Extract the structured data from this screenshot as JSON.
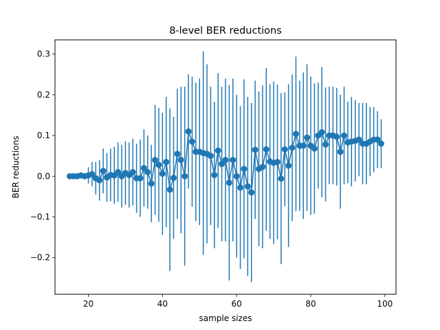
{
  "chart_data": {
    "type": "errorbar-line",
    "title": "8-level BER reductions",
    "xlabel": "sample sizes",
    "ylabel": "BER reductions",
    "xlim": [
      11,
      103
    ],
    "ylim": [
      -0.29,
      0.335
    ],
    "x_ticks": [
      20,
      40,
      60,
      80,
      100
    ],
    "y_ticks": [
      -0.2,
      -0.1,
      0.0,
      0.1,
      0.2,
      0.3
    ],
    "y_tick_labels": [
      "−0.2",
      "−0.1",
      "0.0",
      "0.1",
      "0.2",
      "0.3"
    ],
    "color": "#1f77b4",
    "series": [
      {
        "name": "BER reduction",
        "x": [
          15,
          16,
          17,
          18,
          19,
          20,
          21,
          22,
          23,
          24,
          25,
          26,
          27,
          28,
          29,
          30,
          31,
          32,
          33,
          34,
          35,
          36,
          37,
          38,
          39,
          40,
          41,
          42,
          43,
          44,
          45,
          46,
          47,
          48,
          49,
          50,
          51,
          52,
          53,
          54,
          55,
          56,
          57,
          58,
          59,
          60,
          61,
          62,
          63,
          64,
          65,
          66,
          67,
          68,
          69,
          70,
          71,
          72,
          73,
          74,
          75,
          76,
          77,
          78,
          79,
          80,
          81,
          82,
          83,
          84,
          85,
          86,
          87,
          88,
          89,
          90,
          91,
          92,
          93,
          94,
          95,
          96,
          97,
          98,
          99
        ],
        "y": [
          0.0,
          0.0,
          0.0,
          0.002,
          0.0,
          0.002,
          0.005,
          -0.005,
          -0.01,
          0.013,
          -0.003,
          0.003,
          0.002,
          0.01,
          0.0,
          0.008,
          0.003,
          0.01,
          -0.005,
          -0.005,
          0.02,
          0.01,
          -0.018,
          0.04,
          0.028,
          0.006,
          0.035,
          -0.033,
          -0.004,
          0.055,
          0.04,
          0.0,
          0.11,
          0.085,
          0.06,
          0.06,
          0.057,
          0.055,
          0.05,
          0.003,
          0.063,
          0.03,
          0.04,
          -0.016,
          0.04,
          0.0,
          -0.028,
          0.018,
          -0.025,
          -0.04,
          0.065,
          0.018,
          0.023,
          0.066,
          0.036,
          0.033,
          0.035,
          -0.006,
          0.066,
          0.026,
          0.07,
          0.104,
          0.075,
          0.075,
          0.095,
          0.075,
          0.068,
          0.1,
          0.108,
          0.078,
          0.1,
          0.1,
          0.097,
          0.06,
          0.1,
          0.083,
          0.085,
          0.087,
          0.09,
          0.08,
          0.08,
          0.085,
          0.09,
          0.09,
          0.08
        ],
        "err": [
          0.003,
          0.004,
          0.005,
          0.007,
          0.008,
          0.02,
          0.03,
          0.04,
          0.05,
          0.055,
          0.06,
          0.065,
          0.07,
          0.073,
          0.077,
          0.078,
          0.08,
          0.082,
          0.085,
          0.095,
          0.095,
          0.09,
          0.095,
          0.135,
          0.14,
          0.15,
          0.16,
          0.2,
          0.15,
          0.16,
          0.18,
          0.22,
          0.14,
          0.16,
          0.17,
          0.18,
          0.25,
          0.22,
          0.17,
          0.18,
          0.19,
          0.19,
          0.2,
          0.24,
          0.2,
          0.2,
          0.2,
          0.22,
          0.22,
          0.22,
          0.17,
          0.19,
          0.2,
          0.2,
          0.19,
          0.2,
          0.19,
          0.21,
          0.14,
          0.2,
          0.18,
          0.19,
          0.16,
          0.18,
          0.18,
          0.17,
          0.16,
          0.13,
          0.16,
          0.14,
          0.12,
          0.12,
          0.12,
          0.14,
          0.12,
          0.1,
          0.11,
          0.1,
          0.09,
          0.1,
          0.1,
          0.085,
          0.08,
          0.07,
          0.06
        ]
      }
    ]
  }
}
